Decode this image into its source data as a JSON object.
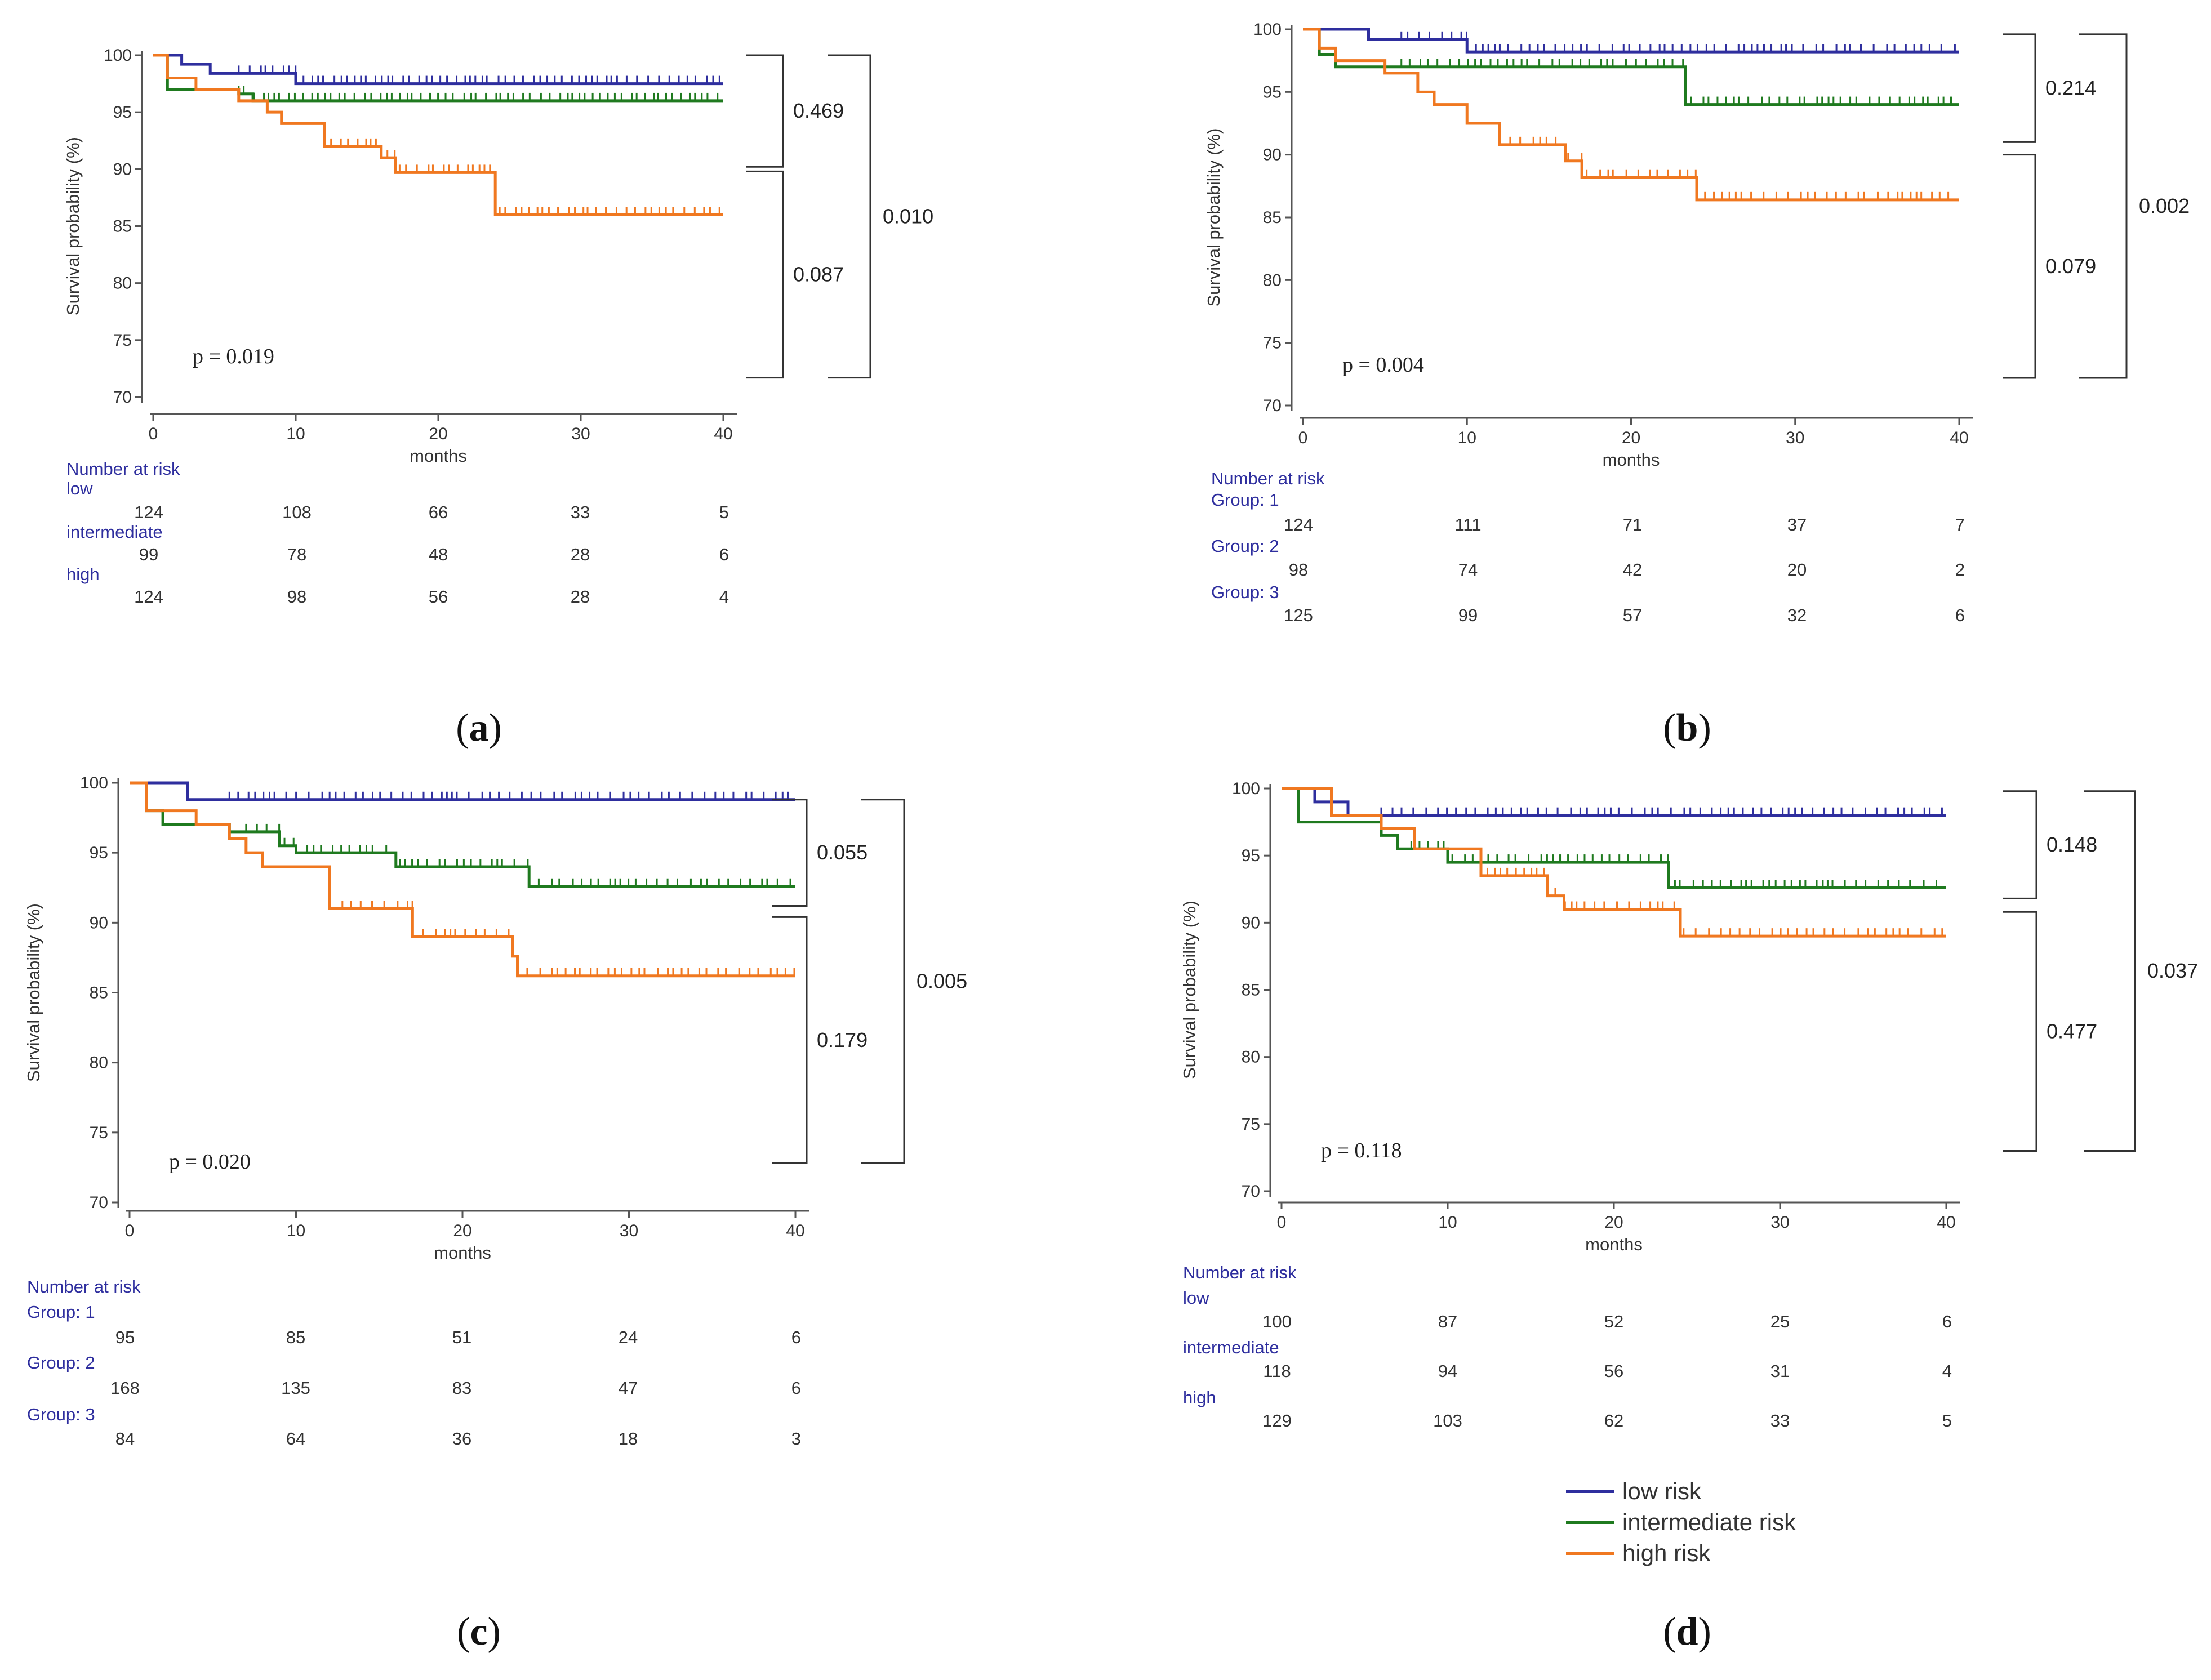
{
  "chart_data": [
    {
      "type": "line",
      "panel": "a",
      "caption": "a",
      "ylabel": "Survival probability (%)",
      "xlabel": "months",
      "xlim": [
        0,
        40
      ],
      "ylim": [
        70,
        100
      ],
      "xticks": [
        "0",
        "10",
        "20",
        "30",
        "40"
      ],
      "yticks": [
        "70",
        "75",
        "80",
        "85",
        "90",
        "95",
        "100"
      ],
      "p_value": "p = 0.019",
      "series": [
        {
          "name": "low",
          "color": "#2e2e9e",
          "steps": [
            [
              0,
              100
            ],
            [
              2,
              99.2
            ],
            [
              4,
              98.4
            ],
            [
              10,
              97.5
            ],
            [
              40,
              97.5
            ]
          ],
          "censor_from": 6
        },
        {
          "name": "intermediate",
          "color": "#1f7a1f",
          "steps": [
            [
              0,
              100
            ],
            [
              1,
              97
            ],
            [
              6,
              96.6
            ],
            [
              7,
              96
            ],
            [
              40,
              96
            ]
          ],
          "censor_from": 6
        },
        {
          "name": "high",
          "color": "#f07820",
          "steps": [
            [
              0,
              100
            ],
            [
              1,
              98
            ],
            [
              3,
              97
            ],
            [
              6,
              96
            ],
            [
              8,
              95
            ],
            [
              9,
              94
            ],
            [
              12,
              92
            ],
            [
              16,
              91
            ],
            [
              17,
              89.7
            ],
            [
              23,
              89.7
            ],
            [
              24,
              86
            ],
            [
              40,
              86
            ]
          ],
          "censor_from": 12
        }
      ],
      "brackets": [
        {
          "label": "0.469",
          "from": 100,
          "to": 90.2,
          "level": 1
        },
        {
          "label": "0.087",
          "from": 89.8,
          "to": 71.7,
          "level": 1
        },
        {
          "label": "0.010",
          "from": 100,
          "to": 71.7,
          "level": 2
        }
      ],
      "risk_table": {
        "header": "Number at risk",
        "groups": [
          {
            "label": "low",
            "values": [
              "124",
              "108",
              "66",
              "33",
              "5"
            ]
          },
          {
            "label": "intermediate",
            "values": [
              "99",
              "78",
              "48",
              "28",
              "6"
            ]
          },
          {
            "label": "high",
            "values": [
              "124",
              "98",
              "56",
              "28",
              "4"
            ]
          }
        ]
      }
    },
    {
      "type": "line",
      "panel": "b",
      "caption": "b",
      "ylabel": "Survival probability (%)",
      "xlabel": "months",
      "xlim": [
        0,
        40
      ],
      "ylim": [
        70,
        100
      ],
      "xticks": [
        "0",
        "10",
        "20",
        "30",
        "40"
      ],
      "yticks": [
        "70",
        "75",
        "80",
        "85",
        "90",
        "95",
        "100"
      ],
      "p_value": "p = 0.004",
      "series": [
        {
          "name": "Group: 1",
          "color": "#2e2e9e",
          "steps": [
            [
              0,
              100
            ],
            [
              4,
              99.2
            ],
            [
              10,
              98.2
            ],
            [
              40,
              98.2
            ]
          ],
          "censor_from": 6
        },
        {
          "name": "Group: 2",
          "color": "#1f7a1f",
          "steps": [
            [
              0,
              100
            ],
            [
              1,
              98
            ],
            [
              2,
              97
            ],
            [
              23,
              97
            ],
            [
              23.3,
              94
            ],
            [
              40,
              94
            ]
          ],
          "censor_from": 6
        },
        {
          "name": "Group: 3",
          "color": "#f07820",
          "steps": [
            [
              0,
              100
            ],
            [
              1,
              98.5
            ],
            [
              2,
              97.5
            ],
            [
              5,
              96.5
            ],
            [
              7,
              95
            ],
            [
              8,
              94
            ],
            [
              10,
              92.5
            ],
            [
              12,
              90.8
            ],
            [
              16,
              89.5
            ],
            [
              17,
              88.2
            ],
            [
              24,
              86.4
            ],
            [
              40,
              86.4
            ]
          ],
          "censor_from": 12
        }
      ],
      "brackets": [
        {
          "label": "0.214",
          "from": 99.6,
          "to": 91.0,
          "level": 1
        },
        {
          "label": "0.079",
          "from": 90.0,
          "to": 72.2,
          "level": 1
        },
        {
          "label": "0.002",
          "from": 99.6,
          "to": 72.2,
          "level": 2
        }
      ],
      "risk_table": {
        "header": "Number at risk",
        "groups": [
          {
            "label": "Group: 1",
            "values": [
              "124",
              "111",
              "71",
              "37",
              "7"
            ]
          },
          {
            "label": "Group: 2",
            "values": [
              "98",
              "74",
              "42",
              "20",
              "2"
            ]
          },
          {
            "label": "Group: 3",
            "values": [
              "125",
              "99",
              "57",
              "32",
              "6"
            ]
          }
        ]
      }
    },
    {
      "type": "line",
      "panel": "c",
      "caption": "c",
      "ylabel": "Survival probability (%)",
      "xlabel": "months",
      "xlim": [
        0,
        40
      ],
      "ylim": [
        70,
        100
      ],
      "xticks": [
        "0",
        "10",
        "20",
        "30",
        "40"
      ],
      "yticks": [
        "70",
        "75",
        "80",
        "85",
        "90",
        "95",
        "100"
      ],
      "p_value": "p = 0.020",
      "series": [
        {
          "name": "Group: 1",
          "color": "#2e2e9e",
          "steps": [
            [
              0,
              100
            ],
            [
              3.5,
              98.8
            ],
            [
              40,
              98.8
            ]
          ],
          "censor_from": 6
        },
        {
          "name": "Group: 2",
          "color": "#1f7a1f",
          "steps": [
            [
              0,
              100
            ],
            [
              1,
              98
            ],
            [
              2,
              97
            ],
            [
              6,
              96.5
            ],
            [
              9,
              95.5
            ],
            [
              10,
              95
            ],
            [
              16,
              94
            ],
            [
              24,
              92.6
            ],
            [
              40,
              92.6
            ]
          ],
          "censor_from": 7
        },
        {
          "name": "Group: 3",
          "color": "#f07820",
          "steps": [
            [
              0,
              100
            ],
            [
              1,
              98
            ],
            [
              4,
              97
            ],
            [
              6,
              96
            ],
            [
              7,
              95
            ],
            [
              8,
              94
            ],
            [
              12,
              91
            ],
            [
              17,
              89
            ],
            [
              23,
              87.6
            ],
            [
              23.3,
              86.2
            ],
            [
              40,
              86.2
            ]
          ],
          "censor_from": 12
        }
      ],
      "brackets": [
        {
          "label": "0.055",
          "from": 98.8,
          "to": 91.2,
          "level": 1
        },
        {
          "label": "0.179",
          "from": 90.4,
          "to": 72.8,
          "level": 1
        },
        {
          "label": "0.005",
          "from": 98.8,
          "to": 72.8,
          "level": 2
        }
      ],
      "risk_table": {
        "header": "Number at risk",
        "groups": [
          {
            "label": "Group: 1",
            "values": [
              "95",
              "85",
              "51",
              "24",
              "6"
            ]
          },
          {
            "label": "Group: 2",
            "values": [
              "168",
              "135",
              "83",
              "47",
              "6"
            ]
          },
          {
            "label": "Group: 3",
            "values": [
              "84",
              "64",
              "36",
              "18",
              "3"
            ]
          }
        ]
      }
    },
    {
      "type": "line",
      "panel": "d",
      "caption": "d",
      "ylabel": "Survival probability (%)",
      "xlabel": "months",
      "xlim": [
        0,
        40
      ],
      "ylim": [
        70,
        100
      ],
      "xticks": [
        "0",
        "10",
        "20",
        "30",
        "40"
      ],
      "yticks": [
        "70",
        "75",
        "80",
        "85",
        "90",
        "95",
        "100"
      ],
      "p_value": "p = 0.118",
      "series": [
        {
          "name": "low risk",
          "color": "#2e2e9e",
          "steps": [
            [
              0,
              100
            ],
            [
              2,
              99
            ],
            [
              4,
              98
            ],
            [
              40,
              98
            ]
          ],
          "censor_from": 6
        },
        {
          "name": "intermediate risk",
          "color": "#1f7a1f",
          "steps": [
            [
              0,
              100
            ],
            [
              1,
              97.5
            ],
            [
              6,
              96.5
            ],
            [
              7,
              95.5
            ],
            [
              10,
              94.5
            ],
            [
              23,
              94.5
            ],
            [
              23.3,
              92.6
            ],
            [
              40,
              92.6
            ]
          ],
          "censor_from": 7
        },
        {
          "name": "high risk",
          "color": "#f07820",
          "steps": [
            [
              0,
              100
            ],
            [
              3,
              98
            ],
            [
              6,
              97
            ],
            [
              8,
              95.5
            ],
            [
              12,
              93.5
            ],
            [
              16,
              92
            ],
            [
              17,
              91
            ],
            [
              24,
              89
            ],
            [
              40,
              89
            ]
          ],
          "censor_from": 12
        }
      ],
      "brackets": [
        {
          "label": "0.148",
          "from": 99.8,
          "to": 91.8,
          "level": 1
        },
        {
          "label": "0.477",
          "from": 90.8,
          "to": 73.0,
          "level": 1
        },
        {
          "label": "0.037",
          "from": 99.8,
          "to": 73.0,
          "level": 2
        }
      ],
      "risk_table": {
        "header": "Number at risk",
        "groups": [
          {
            "label": "low",
            "values": [
              "100",
              "87",
              "52",
              "25",
              "6"
            ]
          },
          {
            "label": "intermediate",
            "values": [
              "118",
              "94",
              "56",
              "31",
              "4"
            ]
          },
          {
            "label": "high",
            "values": [
              "129",
              "103",
              "62",
              "33",
              "5"
            ]
          }
        ]
      }
    }
  ],
  "legend": {
    "entries": [
      {
        "label": "low risk",
        "color": "#2e2e9e"
      },
      {
        "label": "intermediate risk",
        "color": "#1f7a1f"
      },
      {
        "label": "high risk",
        "color": "#f07820"
      }
    ]
  },
  "colors": {
    "header": "#2e2e9e",
    "axis": "#555555"
  }
}
